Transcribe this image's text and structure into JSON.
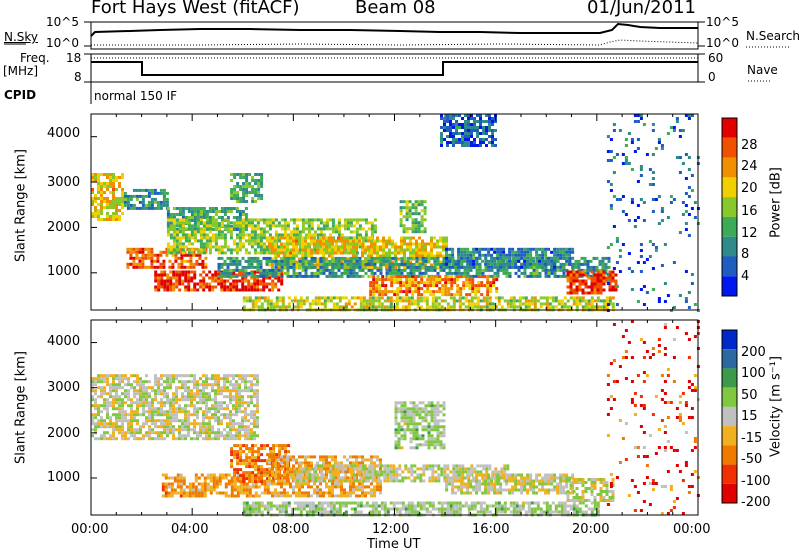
{
  "header": {
    "station": "Fort Hays West (fitACF)",
    "beam": "Beam 08",
    "date": "01/Jun/2011"
  },
  "summary": {
    "nsky_label": "N.Sky",
    "nsearch_label": "N.Search",
    "noise_tick_hi": "10^5",
    "noise_tick_lo": "10^0",
    "freq_label": "Freq.",
    "freq_unit": "[MHz]",
    "freq_tick_hi": "18",
    "freq_tick_lo": "8",
    "nave_label": "Nave",
    "nave_tick_hi": "60",
    "nave_tick_lo": "0",
    "cpid_label": "CPID",
    "cpid_value": "normal 150 IF"
  },
  "colors": {
    "power": [
      "#0018f0",
      "#1f5ec0",
      "#2f8a8a",
      "#3cab56",
      "#88c82a",
      "#f0d000",
      "#f09000",
      "#f05000",
      "#e00000"
    ],
    "velocity": [
      "#e00000",
      "#f03000",
      "#f07a00",
      "#f0b020",
      "#c0c0c0",
      "#80c840",
      "#3c9a4a",
      "#2a6aa0",
      "#0028c8"
    ]
  },
  "chart_data": [
    {
      "type": "heatmap",
      "title": "Power",
      "ylabel": "Slant Range [km]",
      "xlabel": "",
      "x_range_hours": [
        0,
        24
      ],
      "ylim": [
        180,
        4500
      ],
      "yticks": [
        "1000",
        "2000",
        "3000",
        "4000"
      ],
      "colorbar": {
        "label": "Power [dB]",
        "range": [
          0,
          32
        ],
        "ticks": [
          "4",
          "8",
          "12",
          "16",
          "20",
          "24",
          "28"
        ]
      },
      "echo_regions": [
        {
          "t0": 0.0,
          "t1": 1.3,
          "r0": 2200,
          "r1": 3200,
          "v": 20
        },
        {
          "t0": 1.3,
          "t1": 3.0,
          "r0": 2400,
          "r1": 2850,
          "v": 10
        },
        {
          "t0": 3.0,
          "t1": 6.2,
          "r0": 1950,
          "r1": 2450,
          "v": 12
        },
        {
          "t0": 5.5,
          "t1": 6.8,
          "r0": 2600,
          "r1": 3200,
          "v": 12
        },
        {
          "t0": 1.4,
          "t1": 4.5,
          "r0": 1150,
          "r1": 1550,
          "v": 26
        },
        {
          "t0": 3.0,
          "t1": 11.2,
          "r0": 1450,
          "r1": 2200,
          "v": 16
        },
        {
          "t0": 2.5,
          "t1": 7.5,
          "r0": 650,
          "r1": 1050,
          "v": 28
        },
        {
          "t0": 7.0,
          "t1": 14.0,
          "r0": 1100,
          "r1": 1800,
          "v": 20
        },
        {
          "t0": 5.0,
          "t1": 20.5,
          "r0": 900,
          "r1": 1350,
          "v": 10
        },
        {
          "t0": 11.0,
          "t1": 16.0,
          "r0": 550,
          "r1": 950,
          "v": 24
        },
        {
          "t0": 14.0,
          "t1": 19.0,
          "r0": 1100,
          "r1": 1550,
          "v": 8
        },
        {
          "t0": 18.8,
          "t1": 20.8,
          "r0": 550,
          "r1": 1050,
          "v": 28
        },
        {
          "t0": 12.2,
          "t1": 13.2,
          "r0": 1900,
          "r1": 2600,
          "v": 14
        },
        {
          "t0": 13.8,
          "t1": 16.0,
          "r0": 3800,
          "r1": 4500,
          "v": 6
        },
        {
          "t0": 6.0,
          "t1": 20.6,
          "r0": 200,
          "r1": 480,
          "v": 18
        }
      ],
      "scatter_regions": [
        {
          "t0": 20.4,
          "t1": 24.0,
          "r0": 200,
          "r1": 4500,
          "v": 6
        }
      ]
    },
    {
      "type": "heatmap",
      "title": "Velocity",
      "ylabel": "Slant Range [km]",
      "xlabel": "Time UT",
      "x_range_hours": [
        0,
        24
      ],
      "xticks": [
        "00:00",
        "04:00",
        "08:00",
        "12:00",
        "16:00",
        "20:00",
        "00:00"
      ],
      "ylim": [
        180,
        4500
      ],
      "yticks": [
        "1000",
        "2000",
        "3000",
        "4000"
      ],
      "colorbar": {
        "label": "Velocity [m s⁻¹]",
        "range": [
          -250,
          250
        ],
        "ticks": [
          "200",
          "100",
          "50",
          "15",
          "-15",
          "-50",
          "-100",
          "-200"
        ]
      },
      "echo_regions": [
        {
          "t0": 0.0,
          "t1": 6.6,
          "r0": 1850,
          "r1": 3300,
          "v": 0
        },
        {
          "t0": 2.8,
          "t1": 7.0,
          "r0": 580,
          "r1": 1100,
          "v": -80
        },
        {
          "t0": 5.5,
          "t1": 7.8,
          "r0": 900,
          "r1": 1750,
          "v": -120
        },
        {
          "t0": 7.0,
          "t1": 11.5,
          "r0": 600,
          "r1": 1500,
          "v": -70
        },
        {
          "t0": 8.0,
          "t1": 16.5,
          "r0": 950,
          "r1": 1300,
          "v": 0
        },
        {
          "t0": 12.0,
          "t1": 14.0,
          "r0": 1700,
          "r1": 2700,
          "v": 30
        },
        {
          "t0": 14.0,
          "t1": 19.0,
          "r0": 700,
          "r1": 1100,
          "v": 0
        },
        {
          "t0": 18.8,
          "t1": 20.6,
          "r0": 500,
          "r1": 1000,
          "v": 0
        },
        {
          "t0": 6.0,
          "t1": 20.0,
          "r0": 200,
          "r1": 480,
          "v": 30
        }
      ],
      "scatter_regions": [
        {
          "t0": 20.4,
          "t1": 24.0,
          "r0": 200,
          "r1": 4500,
          "v": -200
        }
      ]
    }
  ]
}
